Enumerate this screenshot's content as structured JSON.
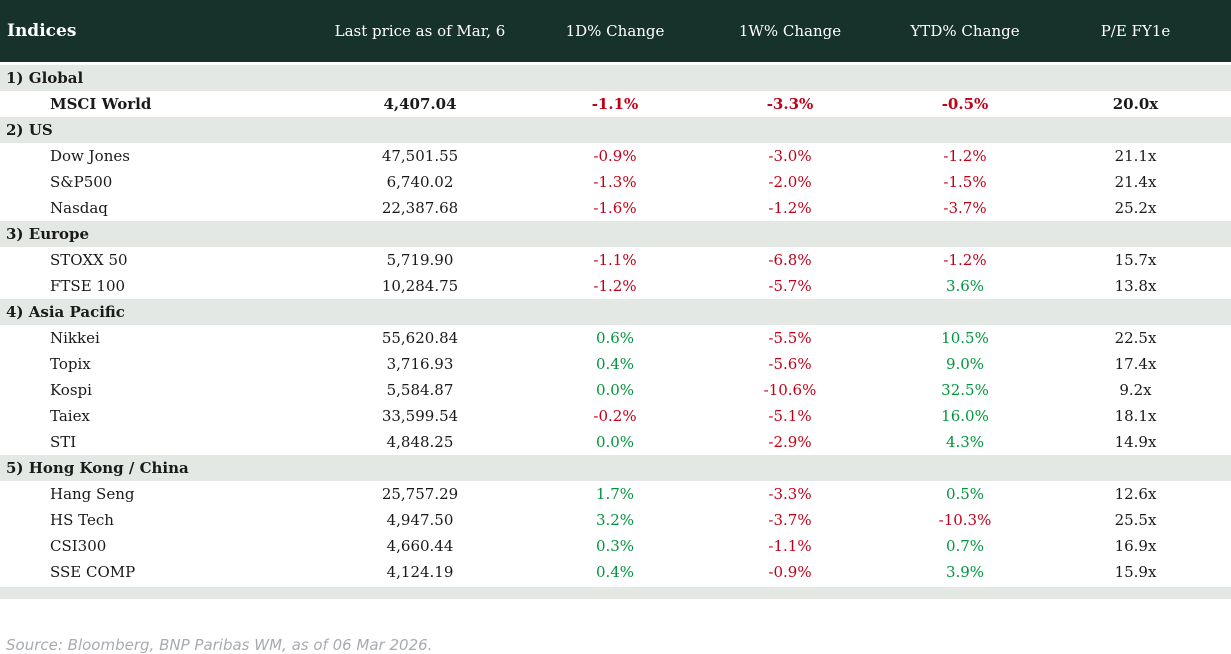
{
  "header": {
    "columns": [
      "Indices",
      "Last price as of Mar, 6",
      "1D% Change",
      "1W% Change",
      "YTD% Change",
      "P/E FY1e"
    ]
  },
  "sections": [
    {
      "label": "1) Global",
      "rows": [
        {
          "name": "MSCI World",
          "price": "4,407.04",
          "d1": "-1.1%",
          "w1": "-3.3%",
          "ytd": "-0.5%",
          "pe": "20.0x",
          "emphasis": true
        }
      ]
    },
    {
      "label": "2) US",
      "rows": [
        {
          "name": "Dow Jones",
          "price": "47,501.55",
          "d1": "-0.9%",
          "w1": "-3.0%",
          "ytd": "-1.2%",
          "pe": "21.1x"
        },
        {
          "name": "S&P500",
          "price": "6,740.02",
          "d1": "-1.3%",
          "w1": "-2.0%",
          "ytd": "-1.5%",
          "pe": "21.4x"
        },
        {
          "name": "Nasdaq",
          "price": "22,387.68",
          "d1": "-1.6%",
          "w1": "-1.2%",
          "ytd": "-3.7%",
          "pe": "25.2x"
        }
      ]
    },
    {
      "label": "3) Europe",
      "rows": [
        {
          "name": "STOXX 50",
          "price": "5,719.90",
          "d1": "-1.1%",
          "w1": "-6.8%",
          "ytd": "-1.2%",
          "pe": "15.7x"
        },
        {
          "name": "FTSE 100",
          "price": "10,284.75",
          "d1": "-1.2%",
          "w1": "-5.7%",
          "ytd": "3.6%",
          "pe": "13.8x"
        }
      ]
    },
    {
      "label": "4) Asia Pacific",
      "rows": [
        {
          "name": "Nikkei",
          "price": "55,620.84",
          "d1": "0.6%",
          "w1": "-5.5%",
          "ytd": "10.5%",
          "pe": "22.5x"
        },
        {
          "name": "Topix",
          "price": "3,716.93",
          "d1": "0.4%",
          "w1": "-5.6%",
          "ytd": "9.0%",
          "pe": "17.4x"
        },
        {
          "name": "Kospi",
          "price": "5,584.87",
          "d1": "0.0%",
          "w1": "-10.6%",
          "ytd": "32.5%",
          "pe": "9.2x"
        },
        {
          "name": "Taiex",
          "price": "33,599.54",
          "d1": "-0.2%",
          "w1": "-5.1%",
          "ytd": "16.0%",
          "pe": "18.1x"
        },
        {
          "name": "STI",
          "price": "4,848.25",
          "d1": "0.0%",
          "w1": "-2.9%",
          "ytd": "4.3%",
          "pe": "14.9x"
        }
      ]
    },
    {
      "label": "5) Hong Kong / China",
      "rows": [
        {
          "name": "Hang Seng",
          "price": "25,757.29",
          "d1": "1.7%",
          "w1": "-3.3%",
          "ytd": "0.5%",
          "pe": "12.6x"
        },
        {
          "name": "HS Tech",
          "price": "4,947.50",
          "d1": "3.2%",
          "w1": "-3.7%",
          "ytd": "-10.3%",
          "pe": "25.5x"
        },
        {
          "name": "CSI300",
          "price": "4,660.44",
          "d1": "0.3%",
          "w1": "-1.1%",
          "ytd": "0.7%",
          "pe": "16.9x"
        },
        {
          "name": "SSE COMP",
          "price": "4,124.19",
          "d1": "0.4%",
          "w1": "-0.9%",
          "ytd": "3.9%",
          "pe": "15.9x"
        }
      ]
    }
  ],
  "footer": {
    "source": "Source: Bloomberg, BNP Paribas WM, as of 06 Mar 2026."
  },
  "colors": {
    "header_bg": "#17322b",
    "header_fg": "#ffffff",
    "section_bg": "#e3e8e5",
    "negative": "#c00018",
    "positive": "#00953d",
    "footer_fg": "#a7abb0"
  }
}
